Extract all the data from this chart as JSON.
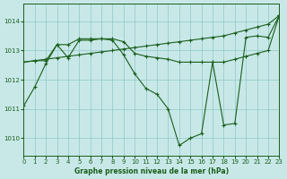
{
  "bg_color": "#c8e8e8",
  "grid_color": "#99cccc",
  "line_color": "#1a5e1a",
  "title": "Graphe pression niveau de la mer (hPa)",
  "xlim": [
    0,
    23
  ],
  "ylim": [
    1009.4,
    1014.6
  ],
  "yticks": [
    1010,
    1011,
    1012,
    1013,
    1014
  ],
  "xticks": [
    0,
    1,
    2,
    3,
    4,
    5,
    6,
    7,
    8,
    9,
    10,
    11,
    12,
    13,
    14,
    15,
    16,
    17,
    18,
    19,
    20,
    21,
    22,
    23
  ],
  "lineA_x": [
    0,
    1,
    2,
    3,
    4,
    5,
    6,
    7,
    8,
    9,
    10,
    11,
    12,
    13,
    14,
    15,
    16,
    17,
    18,
    19,
    20,
    21,
    22,
    23
  ],
  "lineA_y": [
    1012.6,
    1012.65,
    1012.7,
    1012.75,
    1012.8,
    1012.85,
    1012.9,
    1012.95,
    1013.0,
    1013.05,
    1013.1,
    1013.15,
    1013.2,
    1013.25,
    1013.3,
    1013.35,
    1013.4,
    1013.45,
    1013.5,
    1013.6,
    1013.7,
    1013.8,
    1013.9,
    1014.2
  ],
  "lineB_x": [
    0,
    1,
    2,
    3,
    4,
    5,
    6,
    7,
    8,
    9,
    10,
    11,
    12,
    13,
    14,
    15,
    16,
    17,
    18,
    19,
    20,
    21,
    22,
    23
  ],
  "lineB_y": [
    1012.6,
    1012.65,
    1012.65,
    1013.2,
    1013.2,
    1013.4,
    1013.4,
    1013.4,
    1013.4,
    1013.3,
    1012.9,
    1012.8,
    1012.75,
    1012.7,
    1012.6,
    1012.6,
    1012.6,
    1012.6,
    1012.6,
    1012.7,
    1012.8,
    1012.9,
    1013.0,
    1014.2
  ],
  "lineC_x": [
    0,
    1,
    2,
    3,
    4,
    5,
    6,
    7,
    8,
    9,
    10,
    11,
    12,
    13,
    14,
    15,
    16,
    17,
    18,
    19,
    20,
    21,
    22,
    23
  ],
  "lineC_y": [
    1011.1,
    1011.75,
    1012.55,
    1013.2,
    1012.75,
    1013.35,
    1013.35,
    1013.4,
    1013.35,
    1012.85,
    1012.2,
    1011.7,
    1011.5,
    1011.0,
    1009.75,
    1010.0,
    1010.15,
    1012.6,
    1010.45,
    1010.5,
    1013.45,
    1013.5,
    1013.45,
    1014.2
  ]
}
